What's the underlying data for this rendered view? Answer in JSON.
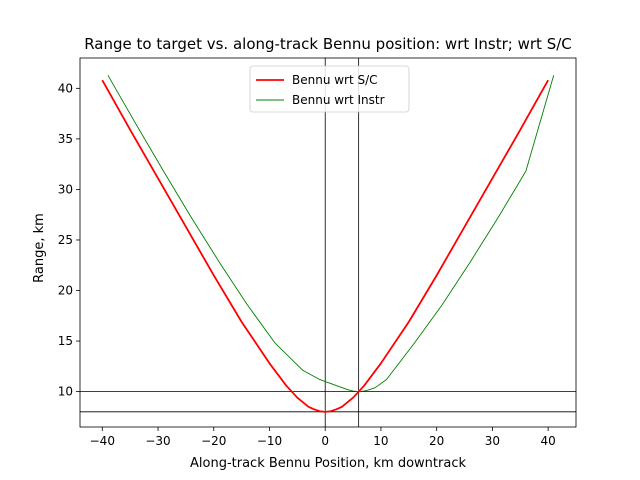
{
  "chart_data": {
    "type": "line",
    "title": "Range to target vs. along-track Bennu position:  wrt Instr; wrt S/C",
    "xlabel": "Along-track Bennu Position, km downtrack",
    "ylabel": "Range, km",
    "xlim": [
      -44,
      45
    ],
    "ylim": [
      6.5,
      43
    ],
    "x_ticks": [
      -40,
      -30,
      -20,
      -10,
      0,
      10,
      20,
      30,
      40
    ],
    "y_ticks": [
      10,
      15,
      20,
      25,
      30,
      35,
      40
    ],
    "grid": false,
    "legend": "upper center",
    "series": [
      {
        "name": "Bennu wrt S/C",
        "color": "#ff0000",
        "x": [
          -40,
          -35,
          -30,
          -25,
          -20,
          -15,
          -10,
          -7,
          -5,
          -3,
          -2,
          -1,
          0,
          1,
          2,
          3,
          5,
          7,
          10,
          15,
          20,
          25,
          30,
          35,
          40
        ],
        "y": [
          40.8,
          35.9,
          31.1,
          26.3,
          21.5,
          16.9,
          12.8,
          10.6,
          9.4,
          8.5,
          8.25,
          8.06,
          8.0,
          8.06,
          8.25,
          8.5,
          9.4,
          10.6,
          12.8,
          16.9,
          21.5,
          26.3,
          31.1,
          35.9,
          40.8
        ]
      },
      {
        "name": "Bennu wrt Instr",
        "color": "#008000",
        "x": [
          -39,
          -34,
          -29,
          -24,
          -19,
          -14,
          -9,
          -4,
          -1,
          1,
          3,
          4,
          5,
          6,
          7,
          8,
          9,
          11,
          16,
          21,
          26,
          31,
          36,
          41
        ],
        "y": [
          41.3,
          36.5,
          31.8,
          27.2,
          22.8,
          18.6,
          14.8,
          12.1,
          11.2,
          10.8,
          10.4,
          10.2,
          10.05,
          10.0,
          10.05,
          10.2,
          10.4,
          11.2,
          14.8,
          18.6,
          22.8,
          27.2,
          31.8,
          41.3
        ]
      }
    ],
    "reference_lines": {
      "vertical": [
        0,
        6
      ],
      "horizontal": [
        8,
        10
      ],
      "color": "#000000"
    }
  }
}
